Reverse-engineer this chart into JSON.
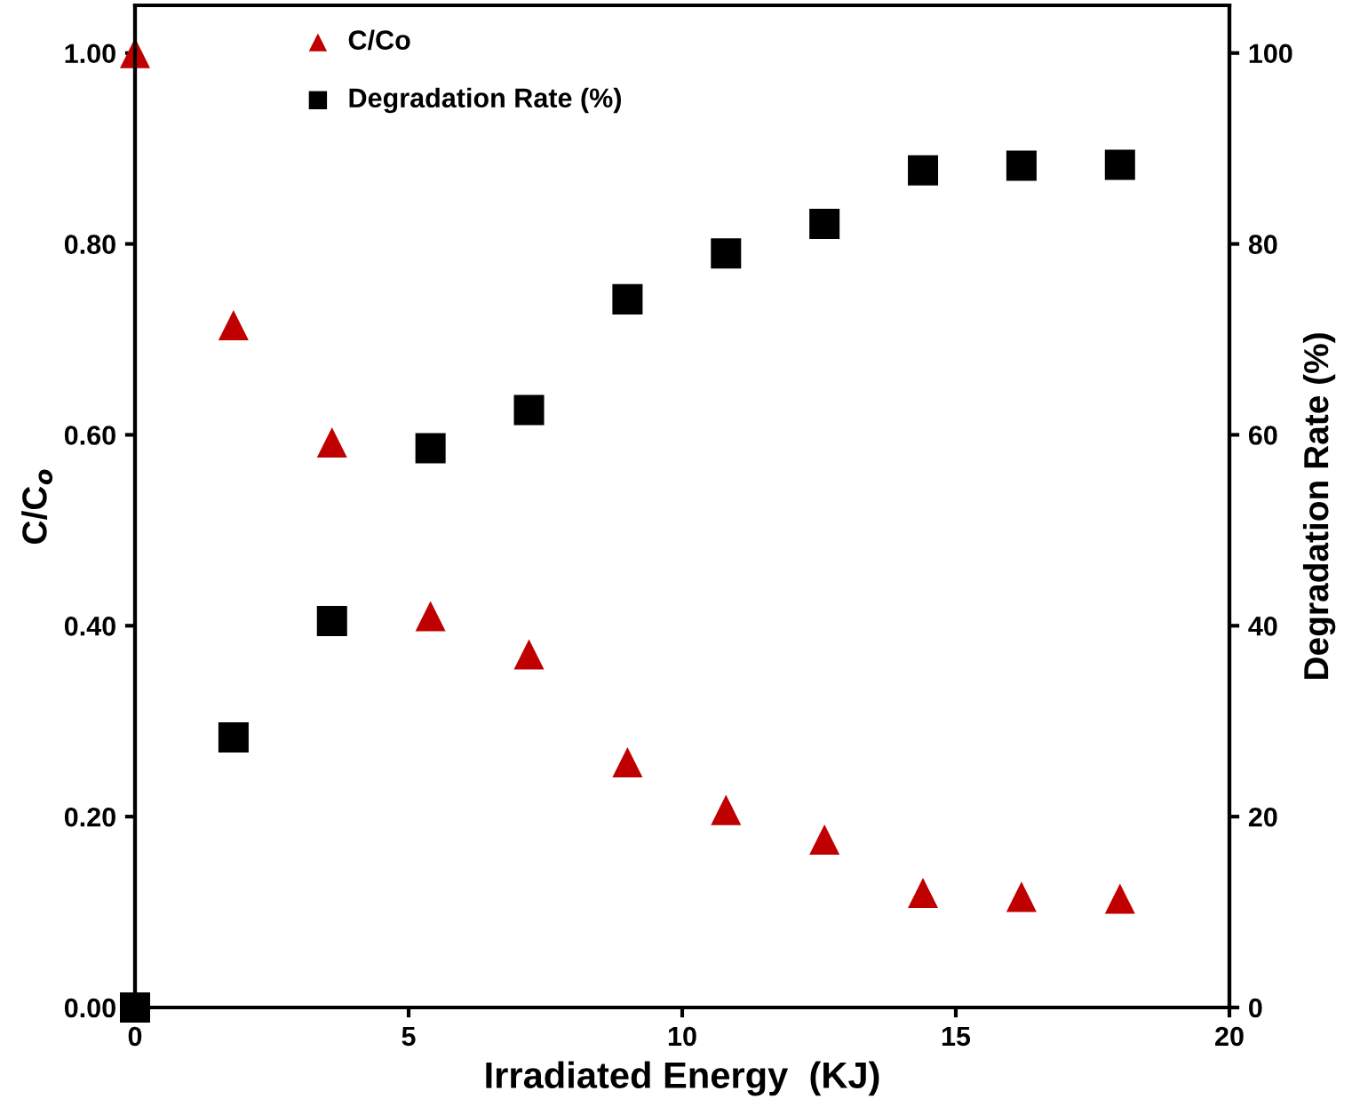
{
  "chart_data": {
    "type": "scatter",
    "xlabel": "Irradiated Energy  (KJ)",
    "ylabel": "C/C$_{o}$",
    "y2label": "Degradation Rate (%)",
    "x": [
      0,
      1.8,
      3.6,
      5.4,
      7.2,
      9.0,
      10.8,
      12.6,
      14.4,
      16.2,
      18.0
    ],
    "series": [
      {
        "name": "C/Co",
        "color": "#c00000",
        "marker": "triangle",
        "values": [
          1.0,
          0.715,
          0.592,
          0.41,
          0.37,
          0.257,
          0.207,
          0.176,
          0.12,
          0.116,
          0.114
        ]
      },
      {
        "name": "Degradation Rate (%)",
        "color": "#000000",
        "marker": "square",
        "axis": "y2",
        "values": [
          0,
          28.3,
          40.5,
          58.6,
          62.6,
          74.2,
          79.0,
          82.1,
          87.7,
          88.2,
          88.3
        ]
      }
    ],
    "xlim": [
      0,
      20
    ],
    "xticks": [
      0,
      5,
      10,
      15,
      20
    ],
    "ylim": [
      0,
      1.05
    ],
    "yticks": [
      {
        "value": 0,
        "label": "0.00"
      },
      {
        "value": 0.2,
        "label": "0.20"
      },
      {
        "value": 0.4,
        "label": "0.40"
      },
      {
        "value": 0.6,
        "label": "0.60"
      },
      {
        "value": 0.8,
        "label": "0.80"
      },
      {
        "value": 1.0,
        "label": "1.00"
      }
    ],
    "y2lim": [
      0,
      105
    ],
    "y2ticks": [
      0,
      20,
      40,
      60,
      80,
      100
    ],
    "grid": false,
    "legend": "top left"
  }
}
